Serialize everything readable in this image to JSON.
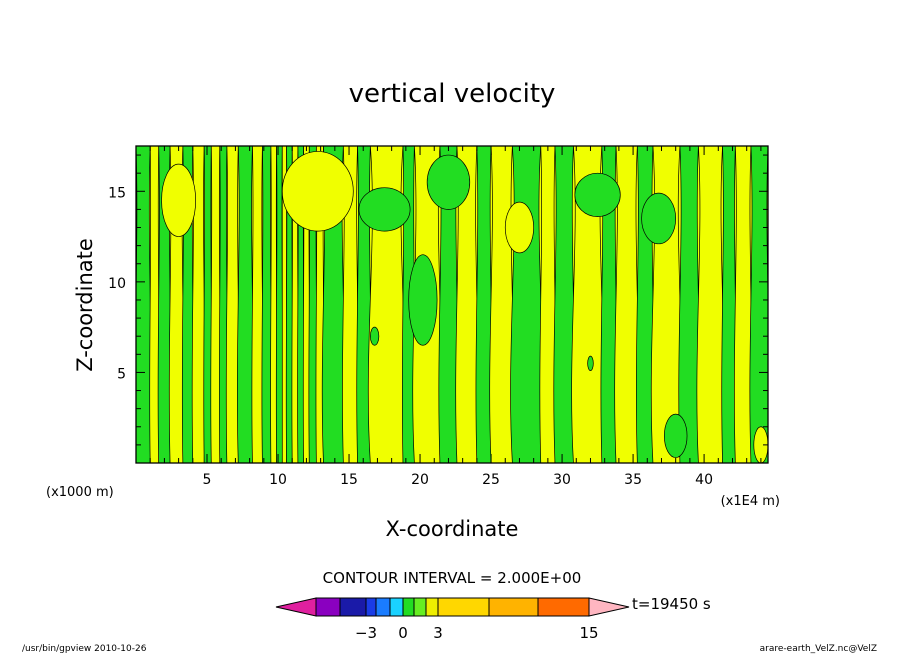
{
  "chart_data": {
    "type": "heatmap",
    "title": "vertical velocity",
    "xlabel": "X-coordinate",
    "ylabel": "Z-coordinate",
    "x_units_left": "(x1000 m)",
    "x_units_right": "(x1E4 m)",
    "xlim": [
      0,
      44.5
    ],
    "ylim": [
      0,
      17.5
    ],
    "x_ticks": [
      5,
      10,
      15,
      20,
      25,
      30,
      35,
      40
    ],
    "y_ticks": [
      5,
      10,
      15
    ],
    "x_tick_labels": [
      "5",
      "10",
      "15",
      "20",
      "25",
      "30",
      "35",
      "40"
    ],
    "y_tick_labels": [
      "5",
      "10",
      "15"
    ],
    "contour_interval_label": "CONTOUR INTERVAL = 2.000E+00",
    "time_label": "t=19450 s",
    "colorbar": {
      "labels": [
        {
          "value": -3,
          "text": "−3"
        },
        {
          "value": 0,
          "text": "0"
        },
        {
          "value": 3,
          "text": "3"
        },
        {
          "value": 15,
          "text": "15"
        }
      ],
      "colors": [
        "#e0209f",
        "#8a00c0",
        "#1a1aa8",
        "#1a3ce6",
        "#1a7cff",
        "#1ad2ff",
        "#22dd22",
        "#66ee22",
        "#eeee00",
        "#ffd700",
        "#ffb300",
        "#ff6a00",
        "#ff1a1a",
        "#ff7a7a",
        "#ffb6c1"
      ]
    },
    "field_colors": {
      "positive": "#f0ff00",
      "negative": "#22dd22"
    },
    "columns": [
      {
        "x": 0.0,
        "v": -1
      },
      {
        "x": 1.0,
        "v": 1
      },
      {
        "x": 1.6,
        "v": -1
      },
      {
        "x": 2.4,
        "v": 1
      },
      {
        "x": 3.3,
        "v": -1
      },
      {
        "x": 4.0,
        "v": 1
      },
      {
        "x": 4.8,
        "v": -1
      },
      {
        "x": 5.3,
        "v": 1
      },
      {
        "x": 5.9,
        "v": -1
      },
      {
        "x": 6.4,
        "v": 1
      },
      {
        "x": 7.2,
        "v": -1
      },
      {
        "x": 8.2,
        "v": 1
      },
      {
        "x": 8.9,
        "v": -1
      },
      {
        "x": 9.5,
        "v": 1
      },
      {
        "x": 9.9,
        "v": -1
      },
      {
        "x": 10.3,
        "v": 1
      },
      {
        "x": 10.6,
        "v": -1
      },
      {
        "x": 11.0,
        "v": 1
      },
      {
        "x": 11.4,
        "v": -1
      },
      {
        "x": 11.8,
        "v": 1
      },
      {
        "x": 12.2,
        "v": -1
      },
      {
        "x": 12.7,
        "v": 1
      },
      {
        "x": 13.2,
        "v": -1
      },
      {
        "x": 14.6,
        "v": 1
      },
      {
        "x": 15.6,
        "v": -1
      },
      {
        "x": 16.5,
        "v": 1
      },
      {
        "x": 18.8,
        "v": -1
      },
      {
        "x": 19.6,
        "v": 1
      },
      {
        "x": 21.4,
        "v": -1
      },
      {
        "x": 22.6,
        "v": 1
      },
      {
        "x": 24.0,
        "v": -1
      },
      {
        "x": 25.0,
        "v": 1
      },
      {
        "x": 26.5,
        "v": -1
      },
      {
        "x": 28.5,
        "v": 1
      },
      {
        "x": 29.5,
        "v": -1
      },
      {
        "x": 30.8,
        "v": 1
      },
      {
        "x": 32.8,
        "v": -1
      },
      {
        "x": 33.8,
        "v": 1
      },
      {
        "x": 35.3,
        "v": -1
      },
      {
        "x": 36.4,
        "v": 1
      },
      {
        "x": 38.3,
        "v": -1
      },
      {
        "x": 39.6,
        "v": 1
      },
      {
        "x": 41.3,
        "v": -1
      },
      {
        "x": 42.2,
        "v": 1
      },
      {
        "x": 43.3,
        "v": -1
      }
    ],
    "blobs": [
      {
        "x": 3.0,
        "y": 14.5,
        "rx": 1.2,
        "ry": 2.0,
        "v": 1
      },
      {
        "x": 12.8,
        "y": 15.0,
        "rx": 2.5,
        "ry": 2.2,
        "v": 1
      },
      {
        "x": 17.5,
        "y": 14.0,
        "rx": 1.8,
        "ry": 1.2,
        "v": -1
      },
      {
        "x": 22.0,
        "y": 15.5,
        "rx": 1.5,
        "ry": 1.5,
        "v": -1
      },
      {
        "x": 27.0,
        "y": 13.0,
        "rx": 1.0,
        "ry": 1.4,
        "v": 1
      },
      {
        "x": 32.5,
        "y": 14.8,
        "rx": 1.6,
        "ry": 1.2,
        "v": -1
      },
      {
        "x": 36.8,
        "y": 13.5,
        "rx": 1.2,
        "ry": 1.4,
        "v": -1
      },
      {
        "x": 20.2,
        "y": 9.0,
        "rx": 1.0,
        "ry": 2.5,
        "v": -1
      },
      {
        "x": 16.8,
        "y": 7.0,
        "rx": 0.3,
        "ry": 0.5,
        "v": -1
      },
      {
        "x": 32.0,
        "y": 5.5,
        "rx": 0.2,
        "ry": 0.4,
        "v": -1
      },
      {
        "x": 38.0,
        "y": 1.5,
        "rx": 0.8,
        "ry": 1.2,
        "v": -1
      },
      {
        "x": 44.0,
        "y": 1.0,
        "rx": 0.5,
        "ry": 1.0,
        "v": 1
      }
    ]
  },
  "footer": {
    "left": "/usr/bin/gpview  2010-10-26",
    "right": "arare-earth_VelZ.nc@VelZ"
  }
}
